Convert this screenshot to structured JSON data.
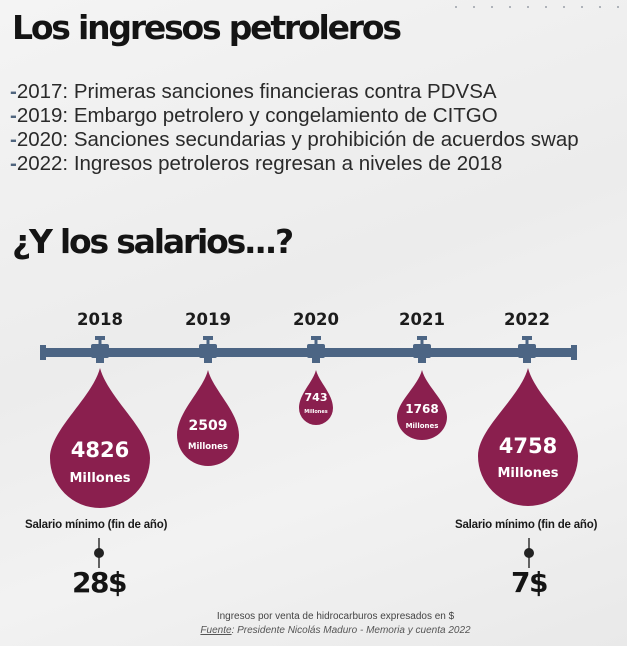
{
  "title": "Los ingresos petroleros",
  "events": [
    {
      "dash": "-",
      "text": "2017: Primeras sanciones financieras contra PDVSA"
    },
    {
      "dash": "-",
      "text": "2019: Embargo petrolero y congelamiento de CITGO"
    },
    {
      "dash": "-",
      "text": "2020: Sanciones secundarias y prohibición de acuerdos swap"
    },
    {
      "dash": "-",
      "text": "2022: Ingresos petroleros regresan a niveles de 2018"
    }
  ],
  "subtitle": "¿Y los salarios...?",
  "timeline": {
    "years": [
      "2018",
      "2019",
      "2020",
      "2021",
      "2022"
    ],
    "drops": [
      {
        "value": "4826",
        "unit": "Millones"
      },
      {
        "value": "2509",
        "unit": "Millones"
      },
      {
        "value": "743",
        "unit": "Millones"
      },
      {
        "value": "1768",
        "unit": "Millones"
      },
      {
        "value": "4758",
        "unit": "Millones"
      }
    ]
  },
  "wages": [
    {
      "label": "Salario mínimo (fin de año)",
      "value": "28$"
    },
    {
      "label": "Salario mínimo (fin de año)",
      "value": "7$"
    }
  ],
  "footnote": {
    "line1": "Ingresos por venta de hidrocarburos expresados en $",
    "source_label": "Fuente",
    "source_text": ": Presidente Nicolás Maduro - Memoria y cuenta 2022"
  },
  "colors": {
    "drop": "#8a1f4e",
    "pipe": "#4c6584",
    "dash": "#4f647d"
  }
}
